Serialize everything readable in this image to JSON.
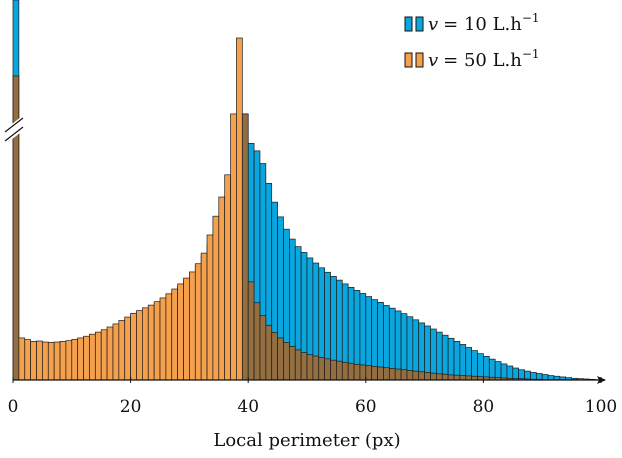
{
  "chart_data": {
    "type": "bar",
    "title": "",
    "xlabel": "Local perimeter (px)",
    "ylabel": "",
    "xlim": [
      0,
      100
    ],
    "x_ticks": [
      "0",
      "20",
      "40",
      "60",
      "80",
      "100"
    ],
    "y_axis_break": true,
    "grid": false,
    "legend_placement": "top-right",
    "bin_width": 1,
    "overlap_color": "#9b6a38",
    "series": [
      {
        "name": "v = 10 L.h−1",
        "legend_var": "v",
        "legend_value": "= 10 L.h",
        "legend_exp": "−1",
        "color": "#0aa6df",
        "first_bin_broken": true,
        "values": [
          0,
          0.107,
          0.101,
          0.101,
          0.101,
          0.101,
          0.101,
          0.101,
          0.103,
          0.106,
          0.109,
          0.112,
          0.118,
          0.124,
          0.131,
          0.138,
          0.146,
          0.154,
          0.162,
          0.171,
          0.18,
          0.189,
          0.198,
          0.208,
          0.219,
          0.23,
          0.243,
          0.258,
          0.274,
          0.292,
          0.313,
          0.337,
          0.364,
          0.396,
          0.433,
          0.476,
          0.525,
          0.583,
          0.668,
          0.778,
          0.692,
          0.67,
          0.633,
          0.575,
          0.52,
          0.477,
          0.441,
          0.412,
          0.39,
          0.373,
          0.357,
          0.342,
          0.328,
          0.315,
          0.303,
          0.292,
          0.281,
          0.271,
          0.262,
          0.253,
          0.244,
          0.235,
          0.227,
          0.218,
          0.21,
          0.202,
          0.194,
          0.185,
          0.176,
          0.167,
          0.158,
          0.149,
          0.14,
          0.131,
          0.122,
          0.113,
          0.104,
          0.095,
          0.086,
          0.077,
          0.069,
          0.061,
          0.054,
          0.047,
          0.041,
          0.035,
          0.03,
          0.026,
          0.022,
          0.019,
          0.016,
          0.013,
          0.011,
          0.009,
          0.007,
          0.005,
          0.004,
          0.003,
          0.002,
          0.001
        ]
      },
      {
        "name": "v = 50 L.h−1",
        "legend_var": "v",
        "legend_value": "= 50 L.h",
        "legend_exp": "−1",
        "color": "#f5a04d",
        "first_bin_broken": false,
        "values": [
          0.889,
          0.123,
          0.118,
          0.113,
          0.114,
          0.111,
          0.11,
          0.111,
          0.113,
          0.115,
          0.119,
          0.123,
          0.128,
          0.134,
          0.14,
          0.147,
          0.155,
          0.164,
          0.174,
          0.184,
          0.195,
          0.203,
          0.211,
          0.219,
          0.229,
          0.24,
          0.252,
          0.266,
          0.281,
          0.298,
          0.316,
          0.34,
          0.371,
          0.424,
          0.479,
          0.535,
          0.6,
          0.778,
          1.0,
          0.778,
          0.287,
          0.226,
          0.188,
          0.16,
          0.139,
          0.123,
          0.11,
          0.098,
          0.088,
          0.08,
          0.074,
          0.07,
          0.066,
          0.062,
          0.058,
          0.055,
          0.052,
          0.049,
          0.046,
          0.044,
          0.042,
          0.04,
          0.038,
          0.036,
          0.034,
          0.032,
          0.03,
          0.028,
          0.026,
          0.024,
          0.022,
          0.02,
          0.018,
          0.017,
          0.015,
          0.014,
          0.013,
          0.012,
          0.011,
          0.01,
          0.009,
          0.008,
          0.007,
          0.006,
          0.005,
          0.004,
          0.004,
          0.003,
          0.002,
          0.002,
          0.001,
          0.001,
          0.001,
          0.001,
          0.001,
          0.001,
          0,
          0,
          0,
          0
        ]
      }
    ]
  }
}
